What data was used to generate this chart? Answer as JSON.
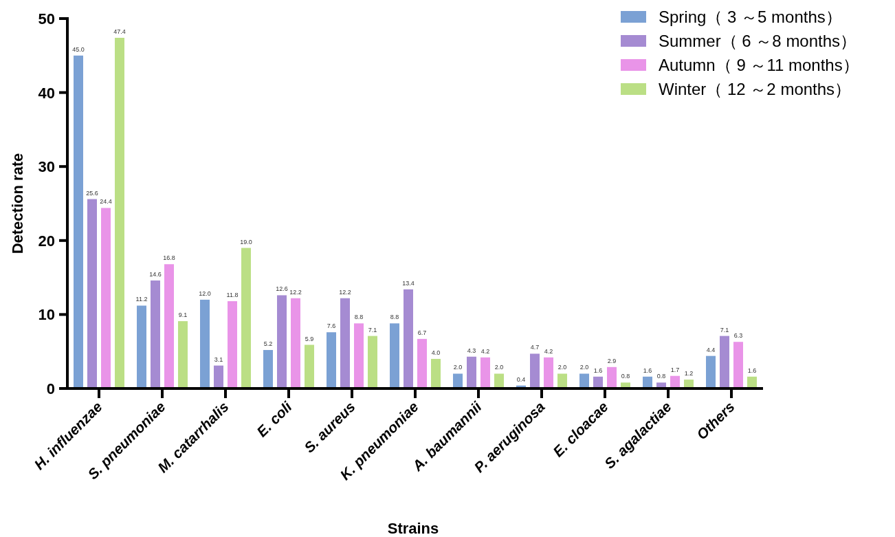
{
  "chart_data": {
    "type": "bar",
    "xlabel": "Strains",
    "ylabel": "Detection rate",
    "categories": [
      "H. influenzae",
      "S. pneumoniae",
      "M. catarrhalis",
      "E. coli",
      "S. aureus",
      "K. pneumoniae",
      "A. baumannii",
      "P. aeruginosa",
      "E. cloacae",
      "S. agalactiae",
      "Others"
    ],
    "series": [
      {
        "name": "Spring（ 3 ～5 months）",
        "color": "#7ba1d4",
        "values": [
          45.0,
          11.2,
          12.0,
          5.2,
          7.6,
          8.8,
          2.0,
          0.4,
          2.0,
          1.6,
          4.4
        ],
        "value_labels": [
          "45.0",
          "11.2",
          "12.0",
          "5.2",
          "7.6",
          "8.8",
          "2.0",
          "0.4",
          "2.0",
          "1.6",
          "4.4"
        ]
      },
      {
        "name": "Summer（ 6 ～8 months）",
        "color": "#a58bd2",
        "values": [
          25.6,
          14.6,
          3.1,
          12.6,
          12.2,
          13.4,
          4.3,
          4.7,
          1.6,
          0.8,
          7.1
        ],
        "value_labels": [
          "25.6",
          "14.6",
          "3.1",
          "12.6",
          "12.2",
          "13.4",
          "4.3",
          "4.7",
          "1.6",
          "0.8",
          "7.1"
        ]
      },
      {
        "name": "Autumn（ 9 ～11 months）",
        "color": "#e994e8",
        "values": [
          24.4,
          16.8,
          11.8,
          12.2,
          8.8,
          6.7,
          4.2,
          4.2,
          2.9,
          1.7,
          6.3
        ],
        "value_labels": [
          "24.4",
          "16.8",
          "11.8",
          "12.2",
          "8.8",
          "6.7",
          "4.2",
          "4.2",
          "2.9",
          "1.7",
          "6.3"
        ]
      },
      {
        "name": "Winter（ 12 ～2 months）",
        "color": "#bbdf85",
        "values": [
          47.4,
          9.1,
          19.0,
          5.9,
          7.1,
          4.0,
          2.0,
          2.0,
          0.8,
          1.2,
          1.6
        ],
        "value_labels": [
          "47.4",
          "9.1",
          "19.0",
          "5.9",
          "7.1",
          "4.0",
          "2.0",
          "2.0",
          "0.8",
          "1.2",
          "1.6"
        ]
      }
    ],
    "ylim": [
      0,
      50
    ],
    "yticks": [
      0,
      10,
      20,
      30,
      40,
      50
    ],
    "grid": false,
    "legend": "top right"
  }
}
